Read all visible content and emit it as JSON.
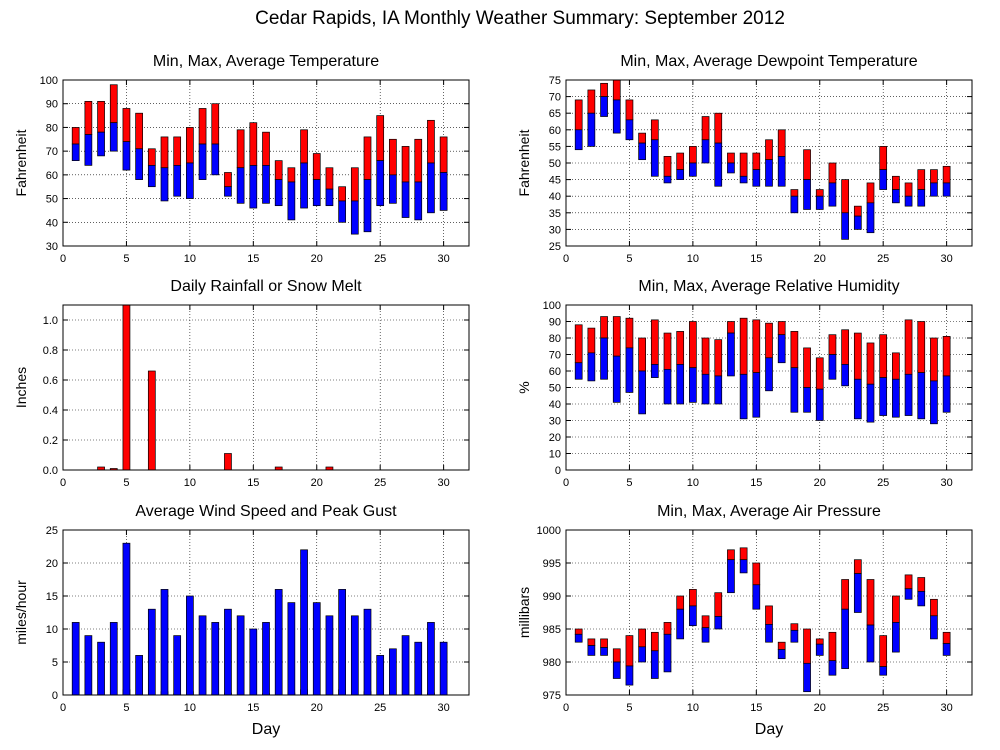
{
  "page": {
    "title": "Cedar Rapids, IA Monthly Weather Summary: September 2012"
  },
  "chart_data": [
    {
      "id": "temperature",
      "type": "bar",
      "title": "Min, Max, Average Temperature",
      "xlabel": "",
      "ylabel": "Fahrenheit",
      "xlim": [
        0,
        32
      ],
      "ylim": [
        30,
        100
      ],
      "xticks": [
        0,
        5,
        10,
        15,
        20,
        25,
        30
      ],
      "yticks": [
        30,
        40,
        50,
        60,
        70,
        80,
        90,
        100
      ],
      "grid": true,
      "x": [
        1,
        2,
        3,
        4,
        5,
        6,
        7,
        8,
        9,
        10,
        11,
        12,
        13,
        14,
        15,
        16,
        17,
        18,
        19,
        20,
        21,
        22,
        23,
        24,
        25,
        26,
        27,
        28,
        29,
        30
      ],
      "min": [
        66,
        64,
        68,
        70,
        62,
        58,
        55,
        49,
        51,
        50,
        58,
        60,
        51,
        48,
        46,
        48,
        47,
        41,
        46,
        47,
        47,
        40,
        35,
        36,
        47,
        48,
        42,
        41,
        44,
        45
      ],
      "avg": [
        73,
        77,
        78,
        82,
        74,
        71,
        64,
        63,
        64,
        65,
        73,
        73,
        55,
        63,
        64,
        64,
        58,
        57,
        65,
        58,
        54,
        49,
        49,
        58,
        66,
        60,
        57,
        57,
        65,
        61
      ],
      "max": [
        80,
        91,
        91,
        98,
        88,
        86,
        71,
        76,
        76,
        80,
        88,
        90,
        61,
        79,
        82,
        78,
        66,
        63,
        79,
        69,
        63,
        55,
        63,
        76,
        85,
        75,
        72,
        75,
        83,
        76
      ],
      "colors": {
        "upper": "#ff0000",
        "lower": "#0000ff"
      }
    },
    {
      "id": "dewpoint",
      "type": "bar",
      "title": "Min, Max, Average Dewpoint Temperature",
      "xlabel": "",
      "ylabel": "Fahrenheit",
      "xlim": [
        0,
        32
      ],
      "ylim": [
        25,
        75
      ],
      "xticks": [
        0,
        5,
        10,
        15,
        20,
        25,
        30
      ],
      "yticks": [
        25,
        30,
        35,
        40,
        45,
        50,
        55,
        60,
        65,
        70,
        75
      ],
      "grid": true,
      "x": [
        1,
        2,
        3,
        4,
        5,
        6,
        7,
        8,
        9,
        10,
        11,
        12,
        13,
        14,
        15,
        16,
        17,
        18,
        19,
        20,
        21,
        22,
        23,
        24,
        25,
        26,
        27,
        28,
        29,
        30
      ],
      "min": [
        54,
        55,
        64,
        59,
        57,
        51,
        46,
        44,
        45,
        46,
        50,
        43,
        47,
        44,
        43,
        43,
        43,
        35,
        36,
        36,
        37,
        27,
        30,
        29,
        42,
        38,
        37,
        37,
        40,
        40
      ],
      "avg": [
        60,
        65,
        70,
        69,
        63,
        56,
        57,
        46,
        48,
        50,
        57,
        56,
        50,
        46,
        48,
        51,
        52,
        40,
        45,
        40,
        44,
        35,
        34,
        38,
        48,
        42,
        40,
        42,
        44,
        44
      ],
      "max": [
        69,
        72,
        74,
        75,
        69,
        59,
        63,
        52,
        53,
        55,
        64,
        65,
        53,
        53,
        53,
        57,
        60,
        42,
        54,
        42,
        50,
        45,
        37,
        44,
        55,
        46,
        44,
        48,
        48,
        49
      ],
      "colors": {
        "upper": "#ff0000",
        "lower": "#0000ff"
      }
    },
    {
      "id": "rainfall",
      "type": "bar",
      "title": "Daily Rainfall or Snow Melt",
      "xlabel": "",
      "ylabel": "Inches",
      "xlim": [
        0,
        32
      ],
      "ylim": [
        0,
        1.1
      ],
      "xticks": [
        0,
        5,
        10,
        15,
        20,
        25,
        30
      ],
      "yticks": [
        0.0,
        0.2,
        0.4,
        0.6,
        0.8,
        1.0
      ],
      "ytick_labels": [
        "0.0",
        "0.2",
        "0.4",
        "0.6",
        "0.8",
        "1.0"
      ],
      "grid": true,
      "x": [
        1,
        2,
        3,
        4,
        5,
        6,
        7,
        8,
        9,
        10,
        11,
        12,
        13,
        14,
        15,
        16,
        17,
        18,
        19,
        20,
        21,
        22,
        23,
        24,
        25,
        26,
        27,
        28,
        29,
        30
      ],
      "values": [
        0,
        0,
        0.02,
        0.01,
        1.12,
        0,
        0.66,
        0,
        0,
        0,
        0,
        0,
        0.11,
        0,
        0,
        0,
        0.02,
        0,
        0,
        0,
        0.02,
        0,
        0,
        0,
        0,
        0,
        0,
        0,
        0,
        0
      ],
      "color": "#ff0000"
    },
    {
      "id": "humidity",
      "type": "bar",
      "title": "Min, Max, Average Relative Humidity",
      "xlabel": "",
      "ylabel": "%",
      "xlim": [
        0,
        32
      ],
      "ylim": [
        0,
        100
      ],
      "xticks": [
        0,
        5,
        10,
        15,
        20,
        25,
        30
      ],
      "yticks": [
        0,
        10,
        20,
        30,
        40,
        50,
        60,
        70,
        80,
        90,
        100
      ],
      "grid": true,
      "x": [
        1,
        2,
        3,
        4,
        5,
        6,
        7,
        8,
        9,
        10,
        11,
        12,
        13,
        14,
        15,
        16,
        17,
        18,
        19,
        20,
        21,
        22,
        23,
        24,
        25,
        26,
        27,
        28,
        29,
        30
      ],
      "min": [
        55,
        54,
        55,
        41,
        47,
        34,
        56,
        40,
        40,
        41,
        40,
        40,
        57,
        31,
        32,
        48,
        65,
        35,
        35,
        30,
        55,
        51,
        31,
        29,
        33,
        32,
        33,
        31,
        28,
        35
      ],
      "avg": [
        65,
        71,
        80,
        69,
        74,
        60,
        64,
        61,
        64,
        62,
        58,
        57,
        83,
        58,
        59,
        68,
        82,
        62,
        50,
        49,
        70,
        64,
        55,
        52,
        56,
        55,
        58,
        59,
        54,
        57
      ],
      "max": [
        88,
        86,
        93,
        93,
        92,
        80,
        91,
        83,
        84,
        90,
        80,
        79,
        90,
        92,
        91,
        89,
        90,
        84,
        74,
        68,
        82,
        85,
        83,
        77,
        82,
        71,
        91,
        90,
        80,
        81
      ],
      "colors": {
        "upper": "#ff0000",
        "lower": "#0000ff"
      }
    },
    {
      "id": "wind",
      "type": "bar",
      "title": "Average Wind Speed and Peak Gust",
      "xlabel": "Day",
      "ylabel": "miles/hour",
      "xlim": [
        0,
        32
      ],
      "ylim": [
        0,
        25
      ],
      "xticks": [
        0,
        5,
        10,
        15,
        20,
        25,
        30
      ],
      "yticks": [
        0,
        5,
        10,
        15,
        20,
        25
      ],
      "grid": true,
      "x": [
        1,
        2,
        3,
        4,
        5,
        6,
        7,
        8,
        9,
        10,
        11,
        12,
        13,
        14,
        15,
        16,
        17,
        18,
        19,
        20,
        21,
        22,
        23,
        24,
        25,
        26,
        27,
        28,
        29,
        30
      ],
      "series": [
        {
          "values": [
            0,
            0,
            0,
            0,
            0.8,
            0,
            0,
            0.5,
            0.2,
            0.5,
            0,
            0.2,
            0.3,
            0,
            0,
            0.2,
            0,
            0.3,
            0.8,
            0,
            0,
            0.8,
            0,
            0.5,
            0,
            0,
            0,
            0,
            0.3,
            0
          ],
          "color": "#ff0000"
        },
        {
          "values": [
            11,
            9,
            8,
            11,
            23,
            6,
            13,
            16,
            9,
            15,
            12,
            11,
            13,
            12,
            10,
            11,
            16,
            14,
            22,
            14,
            12,
            16,
            12,
            13,
            6,
            7,
            9,
            8,
            11,
            8
          ],
          "color": "#0000ff"
        }
      ]
    },
    {
      "id": "pressure",
      "type": "bar",
      "title": "Min, Max, Average Air Pressure",
      "xlabel": "Day",
      "ylabel": "millibars",
      "xlim": [
        0,
        32
      ],
      "ylim": [
        975,
        1000
      ],
      "xticks": [
        0,
        5,
        10,
        15,
        20,
        25,
        30
      ],
      "yticks": [
        975,
        980,
        985,
        990,
        995,
        1000
      ],
      "grid": true,
      "x": [
        1,
        2,
        3,
        4,
        5,
        6,
        7,
        8,
        9,
        10,
        11,
        12,
        13,
        14,
        15,
        16,
        17,
        18,
        19,
        20,
        21,
        22,
        23,
        24,
        25,
        26,
        27,
        28,
        29,
        30
      ],
      "min": [
        983,
        981,
        981,
        977.5,
        976.5,
        980,
        977.5,
        978.5,
        983.5,
        985.5,
        983,
        985,
        990.5,
        993.5,
        988,
        983,
        980.5,
        983,
        975.5,
        981,
        978,
        979,
        987.5,
        980,
        978,
        981.5,
        989.5,
        988.5,
        983.5,
        981
      ],
      "avg": [
        984.2,
        982.5,
        982.2,
        980,
        979.4,
        982.3,
        981.7,
        984.2,
        988,
        988.5,
        985.2,
        986.9,
        995.5,
        995.5,
        991.7,
        985.7,
        981.9,
        984.8,
        979.8,
        982.7,
        980.2,
        988,
        993.4,
        985.6,
        979.3,
        986,
        991.1,
        990.7,
        987,
        982.8
      ],
      "max": [
        985,
        983.5,
        983.5,
        982,
        984,
        985,
        984.5,
        986,
        990,
        991,
        987,
        990.5,
        997,
        997.3,
        995,
        988.5,
        983,
        985.8,
        985,
        983.5,
        984.5,
        992.5,
        995.5,
        992.5,
        984,
        990,
        993.2,
        992.8,
        989.5,
        984.5
      ],
      "colors": {
        "upper": "#ff0000",
        "lower": "#0000ff"
      }
    }
  ]
}
